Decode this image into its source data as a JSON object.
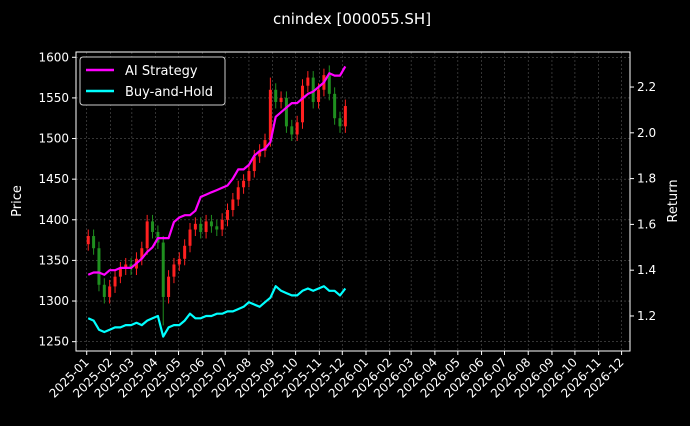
{
  "chart_data": {
    "type": "line",
    "title": "cnindex [000055.SH]",
    "ylabel": "Price",
    "y2label": "Return",
    "background": "#000000",
    "grid": true,
    "legend_position": "top-left",
    "xlim": [
      "2024-12-18",
      "2026-12-12"
    ],
    "ylim": [
      1238.5,
      1606.5
    ],
    "y2lim": [
      1.047,
      2.353
    ],
    "x_ticks": [
      "2025-01",
      "2025-02",
      "2025-03",
      "2025-04",
      "2025-05",
      "2025-06",
      "2025-07",
      "2025-08",
      "2025-09",
      "2025-10",
      "2025-11",
      "2025-12",
      "2026-01",
      "2026-02",
      "2026-03",
      "2026-04",
      "2026-05",
      "2026-06",
      "2026-07",
      "2026-08",
      "2026-09",
      "2026-10",
      "2026-11",
      "2026-12"
    ],
    "y_ticks": [
      1250,
      1300,
      1350,
      1400,
      1450,
      1500,
      1550,
      1600
    ],
    "y2_ticks": [
      1.2,
      1.4,
      1.6,
      1.8,
      2.0,
      2.2
    ],
    "dates": [
      "2025-01-03",
      "2025-01-10",
      "2025-01-17",
      "2025-01-24",
      "2025-01-31",
      "2025-02-07",
      "2025-02-14",
      "2025-02-21",
      "2025-02-28",
      "2025-03-07",
      "2025-03-14",
      "2025-03-21",
      "2025-03-28",
      "2025-04-04",
      "2025-04-11",
      "2025-04-18",
      "2025-04-25",
      "2025-05-02",
      "2025-05-09",
      "2025-05-16",
      "2025-05-23",
      "2025-05-30",
      "2025-06-06",
      "2025-06-13",
      "2025-06-20",
      "2025-06-27",
      "2025-07-04",
      "2025-07-11",
      "2025-07-18",
      "2025-07-25",
      "2025-08-01",
      "2025-08-08",
      "2025-08-15",
      "2025-08-22",
      "2025-08-29",
      "2025-09-05",
      "2025-09-12",
      "2025-09-19",
      "2025-09-26",
      "2025-10-03",
      "2025-10-10",
      "2025-10-17",
      "2025-10-24",
      "2025-10-31",
      "2025-11-07",
      "2025-11-14",
      "2025-11-21",
      "2025-11-28",
      "2025-12-05"
    ],
    "candles": {
      "up_color": "#ff2020",
      "down_color": "#1f8f1f",
      "open": [
        1370,
        1380,
        1365,
        1320,
        1305,
        1318,
        1330,
        1340,
        1345,
        1340,
        1352,
        1365,
        1398,
        1385,
        1372,
        1305,
        1330,
        1345,
        1352,
        1368,
        1388,
        1395,
        1385,
        1398,
        1392,
        1388,
        1400,
        1412,
        1425,
        1440,
        1448,
        1460,
        1478,
        1485,
        1498,
        1560,
        1545,
        1550,
        1515,
        1505,
        1520,
        1565,
        1575,
        1545,
        1560,
        1578,
        1555,
        1525,
        1515
      ],
      "high": [
        1388,
        1388,
        1373,
        1328,
        1326,
        1338,
        1348,
        1353,
        1353,
        1360,
        1373,
        1406,
        1406,
        1393,
        1380,
        1338,
        1353,
        1360,
        1376,
        1396,
        1403,
        1403,
        1406,
        1406,
        1400,
        1408,
        1420,
        1433,
        1448,
        1456,
        1468,
        1486,
        1493,
        1506,
        1575,
        1568,
        1558,
        1558,
        1523,
        1528,
        1573,
        1583,
        1583,
        1568,
        1586,
        1590,
        1563,
        1533,
        1548
      ],
      "low": [
        1362,
        1357,
        1312,
        1297,
        1297,
        1310,
        1322,
        1332,
        1332,
        1332,
        1344,
        1357,
        1377,
        1364,
        1270,
        1297,
        1322,
        1337,
        1344,
        1360,
        1380,
        1377,
        1377,
        1384,
        1380,
        1380,
        1392,
        1404,
        1417,
        1432,
        1440,
        1452,
        1470,
        1477,
        1490,
        1537,
        1537,
        1507,
        1497,
        1497,
        1512,
        1557,
        1537,
        1537,
        1552,
        1547,
        1517,
        1507,
        1507
      ],
      "close": [
        1380,
        1365,
        1320,
        1305,
        1318,
        1330,
        1340,
        1345,
        1340,
        1352,
        1365,
        1398,
        1385,
        1372,
        1305,
        1330,
        1345,
        1352,
        1368,
        1388,
        1395,
        1385,
        1398,
        1392,
        1388,
        1400,
        1412,
        1425,
        1440,
        1448,
        1460,
        1478,
        1485,
        1498,
        1560,
        1545,
        1550,
        1515,
        1505,
        1520,
        1565,
        1575,
        1545,
        1560,
        1578,
        1555,
        1525,
        1515,
        1540
      ]
    },
    "series": [
      {
        "name": "AI Strategy",
        "axis": "right",
        "color": "#ff00ff",
        "values": [
          1.38,
          1.39,
          1.39,
          1.38,
          1.4,
          1.4,
          1.41,
          1.41,
          1.41,
          1.43,
          1.45,
          1.48,
          1.5,
          1.54,
          1.54,
          1.54,
          1.61,
          1.63,
          1.64,
          1.64,
          1.66,
          1.72,
          1.73,
          1.74,
          1.75,
          1.76,
          1.77,
          1.8,
          1.84,
          1.84,
          1.86,
          1.9,
          1.92,
          1.93,
          1.96,
          2.07,
          2.09,
          2.11,
          2.13,
          2.13,
          2.15,
          2.17,
          2.18,
          2.2,
          2.22,
          2.26,
          2.25,
          2.25,
          2.29
        ]
      },
      {
        "name": "Buy-and-Hold",
        "axis": "right",
        "color": "#00ffff",
        "values": [
          1.19,
          1.18,
          1.14,
          1.13,
          1.14,
          1.15,
          1.15,
          1.16,
          1.16,
          1.17,
          1.16,
          1.18,
          1.19,
          1.2,
          1.11,
          1.15,
          1.16,
          1.16,
          1.18,
          1.21,
          1.19,
          1.19,
          1.2,
          1.2,
          1.21,
          1.21,
          1.22,
          1.22,
          1.23,
          1.24,
          1.26,
          1.25,
          1.24,
          1.26,
          1.28,
          1.33,
          1.31,
          1.3,
          1.29,
          1.29,
          1.31,
          1.32,
          1.31,
          1.32,
          1.33,
          1.31,
          1.31,
          1.29,
          1.32
        ]
      }
    ]
  }
}
